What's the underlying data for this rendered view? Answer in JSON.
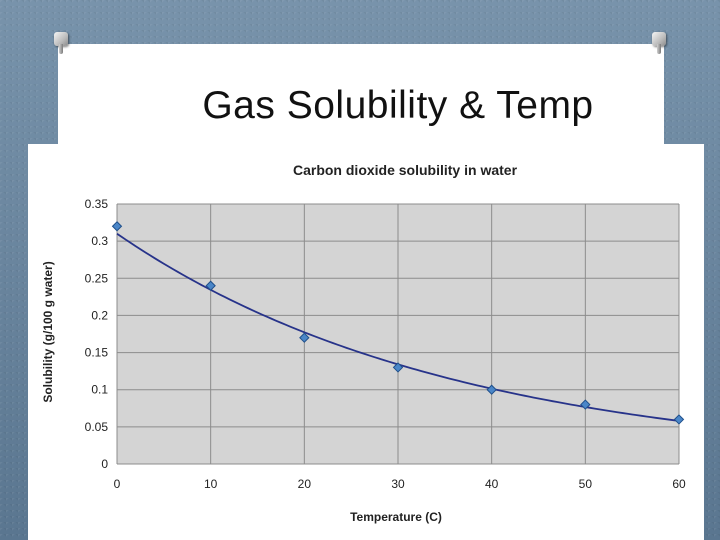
{
  "slide": {
    "title": "Gas Solubility & Temp"
  },
  "chart_data": {
    "type": "scatter",
    "title": "Carbon dioxide solubility in water",
    "xlabel": "Temperature (C)",
    "ylabel": "Solubility (g/100 g water)",
    "xlim": [
      0,
      60
    ],
    "ylim": [
      0,
      0.35
    ],
    "xticks": [
      0,
      10,
      20,
      30,
      40,
      50,
      60
    ],
    "yticks": [
      0,
      0.05,
      0.1,
      0.15,
      0.2,
      0.25,
      0.3,
      0.35
    ],
    "ytick_labels": [
      "0",
      "0.05",
      "0.1",
      "0.15",
      "0.2",
      "0.25",
      "0.3",
      "0.35"
    ],
    "grid": true,
    "series": [
      {
        "x": [
          0,
          10,
          20,
          30,
          40,
          50,
          60
        ],
        "y": [
          0.32,
          0.24,
          0.17,
          0.13,
          0.1,
          0.08,
          0.06
        ],
        "marker": "diamond",
        "color": "#4a86c8"
      }
    ],
    "trendline": {
      "type": "exponential",
      "color": "#27338a",
      "y_at_0": 0.31,
      "y_at_60": 0.058
    },
    "plot_background": "#d4d4d4",
    "gridline_color": "#8c8c8c"
  }
}
